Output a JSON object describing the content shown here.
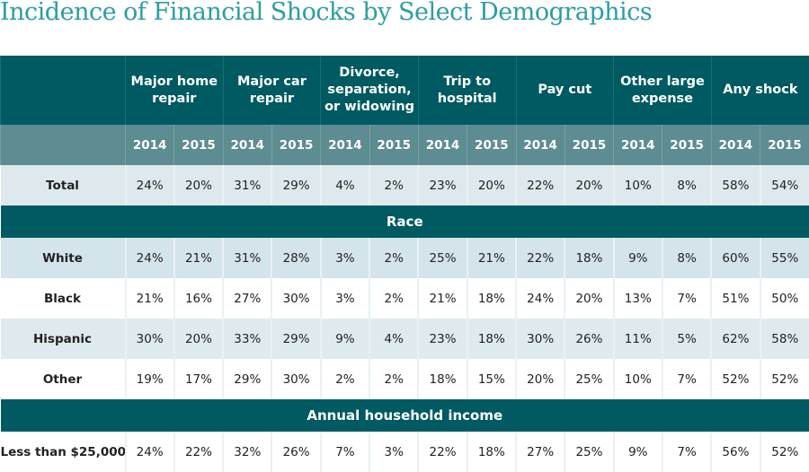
{
  "title": "Incidence of Financial Shocks by Select Demographics",
  "columns": [
    "Major home repair",
    "Major car repair",
    "Divorce, separation, or widowing",
    "Trip to hospital",
    "Pay cut",
    "Other large expense",
    "Any shock"
  ],
  "years": [
    "2014",
    "2015"
  ],
  "sections": [
    {
      "band": null,
      "rows": [
        {
          "label": "Total",
          "values": [
            "24%",
            "20%",
            "31%",
            "29%",
            "4%",
            "2%",
            "23%",
            "20%",
            "22%",
            "20%",
            "10%",
            "8%",
            "58%",
            "54%"
          ]
        }
      ]
    },
    {
      "band": "Race",
      "rows": [
        {
          "label": "White",
          "values": [
            "24%",
            "21%",
            "31%",
            "28%",
            "3%",
            "2%",
            "25%",
            "21%",
            "22%",
            "18%",
            "9%",
            "8%",
            "60%",
            "55%"
          ]
        },
        {
          "label": "Black",
          "values": [
            "21%",
            "16%",
            "27%",
            "30%",
            "3%",
            "2%",
            "21%",
            "18%",
            "24%",
            "20%",
            "13%",
            "7%",
            "51%",
            "50%"
          ]
        },
        {
          "label": "Hispanic",
          "values": [
            "30%",
            "20%",
            "33%",
            "29%",
            "9%",
            "4%",
            "23%",
            "18%",
            "30%",
            "26%",
            "11%",
            "5%",
            "62%",
            "58%"
          ]
        },
        {
          "label": "Other",
          "values": [
            "19%",
            "17%",
            "29%",
            "30%",
            "2%",
            "2%",
            "18%",
            "15%",
            "20%",
            "25%",
            "10%",
            "7%",
            "52%",
            "52%"
          ]
        }
      ]
    },
    {
      "band": "Annual household income",
      "rows": [
        {
          "label": "Less than $25,000",
          "values": [
            "24%",
            "22%",
            "32%",
            "26%",
            "7%",
            "3%",
            "22%",
            "18%",
            "27%",
            "25%",
            "9%",
            "7%",
            "56%",
            "52%"
          ]
        }
      ]
    }
  ],
  "colors": {
    "title": "#2b9ea0",
    "header": "#005a62",
    "year_row": "#5e8c93"
  }
}
